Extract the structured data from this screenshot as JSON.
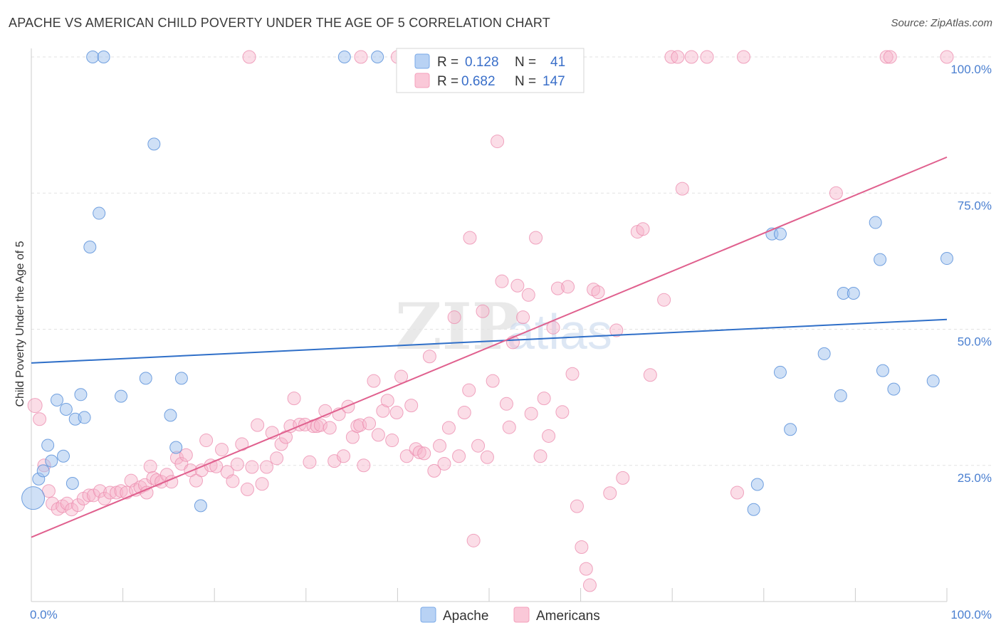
{
  "title": "APACHE VS AMERICAN CHILD POVERTY UNDER THE AGE OF 5 CORRELATION CHART",
  "source": "Source: ZipAtlas.com",
  "watermark": {
    "left": "ZIP",
    "right": "atlas"
  },
  "chart_data": {
    "type": "scatter",
    "title": "APACHE VS AMERICAN CHILD POVERTY UNDER THE AGE OF 5 CORRELATION CHART",
    "ylabel": "Child Poverty Under the Age of 5",
    "xlabel": "",
    "xlim": [
      0,
      100
    ],
    "ylim": [
      0,
      100
    ],
    "x_tick_labels": [
      "0.0%",
      "100.0%"
    ],
    "y_tick_labels": [
      "25.0%",
      "50.0%",
      "75.0%",
      "100.0%"
    ],
    "y_ticks": [
      25,
      50,
      75,
      100
    ],
    "grid": "horizontal dashed",
    "legend_position": "top-center",
    "colors": {
      "apache": "#7aaae8",
      "americans": "#f4a0bc",
      "apache_line": "#2f6fc8",
      "americans_line": "#e0608e"
    },
    "legend": [
      {
        "r_label": "R =",
        "r_value": "0.128",
        "n_label": "N =",
        "n_value": "41"
      },
      {
        "r_label": "R =",
        "r_value": "0.682",
        "n_label": "N =",
        "n_value": "147"
      }
    ],
    "series": [
      {
        "name": "Apache",
        "trend": {
          "x": [
            0,
            100
          ],
          "y": [
            43.8,
            51.8
          ]
        },
        "points": [
          [
            0.2,
            19
          ],
          [
            0.8,
            22.5
          ],
          [
            1.3,
            24
          ],
          [
            1.8,
            28.7
          ],
          [
            2.2,
            25.8
          ],
          [
            2.8,
            37
          ],
          [
            3.5,
            26.7
          ],
          [
            3.8,
            35.3
          ],
          [
            4.5,
            21.7
          ],
          [
            4.8,
            33.5
          ],
          [
            5.4,
            38
          ],
          [
            5.8,
            33.8
          ],
          [
            6.4,
            65.1
          ],
          [
            7.4,
            71.3
          ],
          [
            6.7,
            100
          ],
          [
            7.9,
            100
          ],
          [
            9.8,
            37.7
          ],
          [
            12.5,
            41
          ],
          [
            13.4,
            84
          ],
          [
            15.2,
            34.2
          ],
          [
            15.8,
            28.3
          ],
          [
            16.4,
            41
          ],
          [
            18.5,
            17.6
          ],
          [
            34.2,
            100
          ],
          [
            37.8,
            100
          ],
          [
            78.9,
            16.9
          ],
          [
            79.3,
            21.5
          ],
          [
            80.9,
            67.5
          ],
          [
            81.8,
            67.5
          ],
          [
            81.8,
            42.1
          ],
          [
            82.9,
            31.6
          ],
          [
            86.6,
            45.5
          ],
          [
            88.4,
            37.8
          ],
          [
            88.7,
            56.6
          ],
          [
            89.8,
            56.6
          ],
          [
            92.2,
            69.6
          ],
          [
            92.7,
            62.8
          ],
          [
            93.0,
            42.4
          ],
          [
            94.2,
            39
          ],
          [
            98.5,
            40.5
          ],
          [
            100,
            63
          ]
        ]
      },
      {
        "name": "Americans",
        "trend": {
          "x": [
            0,
            100
          ],
          "y": [
            11.8,
            81.6
          ]
        },
        "points": [
          [
            0.4,
            36
          ],
          [
            0.9,
            33.5
          ],
          [
            1.4,
            25
          ],
          [
            1.9,
            20.3
          ],
          [
            2.3,
            18
          ],
          [
            2.9,
            17
          ],
          [
            3.4,
            17.5
          ],
          [
            3.9,
            18
          ],
          [
            4.4,
            16.9
          ],
          [
            5.1,
            17.7
          ],
          [
            5.7,
            18.9
          ],
          [
            6.3,
            19.5
          ],
          [
            6.8,
            19.5
          ],
          [
            7.5,
            20.3
          ],
          [
            8,
            18.9
          ],
          [
            8.6,
            20
          ],
          [
            9.3,
            20
          ],
          [
            9.8,
            20.3
          ],
          [
            10.4,
            20
          ],
          [
            10.9,
            22.2
          ],
          [
            11.4,
            20.5
          ],
          [
            11.9,
            21
          ],
          [
            12.4,
            21.4
          ],
          [
            12.6,
            20
          ],
          [
            13,
            24.8
          ],
          [
            13.3,
            22.7
          ],
          [
            13.7,
            22.3
          ],
          [
            14.2,
            22
          ],
          [
            14.8,
            23.3
          ],
          [
            15.3,
            22
          ],
          [
            15.9,
            26.4
          ],
          [
            16.4,
            25.3
          ],
          [
            16.9,
            26.9
          ],
          [
            17.4,
            24.1
          ],
          [
            18,
            22.2
          ],
          [
            18.6,
            24.1
          ],
          [
            19.1,
            29.6
          ],
          [
            19.6,
            25
          ],
          [
            20.2,
            24.8
          ],
          [
            20.8,
            27.9
          ],
          [
            21.4,
            23.8
          ],
          [
            22.0,
            22.1
          ],
          [
            22.5,
            25.2
          ],
          [
            23,
            28.9
          ],
          [
            23.6,
            20.6
          ],
          [
            24.1,
            24.7
          ],
          [
            24.7,
            32.4
          ],
          [
            25.2,
            21.6
          ],
          [
            25.7,
            24.7
          ],
          [
            26.3,
            31
          ],
          [
            26.8,
            26.3
          ],
          [
            27.3,
            28.9
          ],
          [
            27.8,
            30.2
          ],
          [
            28.3,
            32.2
          ],
          [
            28.7,
            37.3
          ],
          [
            29.3,
            32.5
          ],
          [
            29.9,
            32.5
          ],
          [
            30.4,
            25.6
          ],
          [
            30.8,
            32.2
          ],
          [
            31.2,
            32.2
          ],
          [
            31.6,
            32.4
          ],
          [
            32.1,
            35
          ],
          [
            32.6,
            31.9
          ],
          [
            33.1,
            25.8
          ],
          [
            33.6,
            34.4
          ],
          [
            34.1,
            26.7
          ],
          [
            34.6,
            35.8
          ],
          [
            35.1,
            30.2
          ],
          [
            35.6,
            32.2
          ],
          [
            35.9,
            32.4
          ],
          [
            36.3,
            25
          ],
          [
            36.9,
            32.7
          ],
          [
            37.4,
            40.5
          ],
          [
            37.9,
            30.6
          ],
          [
            38.4,
            35
          ],
          [
            38.9,
            36.9
          ],
          [
            39.4,
            29.6
          ],
          [
            39.9,
            34.7
          ],
          [
            40.4,
            41.3
          ],
          [
            41,
            26.7
          ],
          [
            41.5,
            36
          ],
          [
            42,
            28
          ],
          [
            42.4,
            27.4
          ],
          [
            42.9,
            27.2
          ],
          [
            43.5,
            45
          ],
          [
            44,
            24
          ],
          [
            44.6,
            28.6
          ],
          [
            45.1,
            25.3
          ],
          [
            45.6,
            31.9
          ],
          [
            46.2,
            52.2
          ],
          [
            46.7,
            26.7
          ],
          [
            47.3,
            34.7
          ],
          [
            47.8,
            38.8
          ],
          [
            48.3,
            11.2
          ],
          [
            48.8,
            28.6
          ],
          [
            49.3,
            53.3
          ],
          [
            49.8,
            26.5
          ],
          [
            50.4,
            40.5
          ],
          [
            50.9,
            84.5
          ],
          [
            51.4,
            58.8
          ],
          [
            51.9,
            36.3
          ],
          [
            52.2,
            32
          ],
          [
            52.6,
            47.6
          ],
          [
            53.1,
            58
          ],
          [
            53.7,
            52.2
          ],
          [
            54.3,
            56.3
          ],
          [
            54.6,
            34.5
          ],
          [
            55.1,
            66.8
          ],
          [
            55.6,
            26.7
          ],
          [
            56,
            37.3
          ],
          [
            56.5,
            30.4
          ],
          [
            57,
            50.3
          ],
          [
            57.5,
            57.5
          ],
          [
            58,
            34.8
          ],
          [
            58.6,
            57.8
          ],
          [
            59.1,
            41.8
          ],
          [
            59.6,
            17.5
          ],
          [
            60.1,
            10
          ],
          [
            60.6,
            6
          ],
          [
            61,
            3
          ],
          [
            61.4,
            57.3
          ],
          [
            61.9,
            56.8
          ],
          [
            63.2,
            19.9
          ],
          [
            63.9,
            49.8
          ],
          [
            64.6,
            22.7
          ],
          [
            66.2,
            67.9
          ],
          [
            66.8,
            68.4
          ],
          [
            67.6,
            41.6
          ],
          [
            69.1,
            55.4
          ],
          [
            69.9,
            100
          ],
          [
            71.1,
            75.8
          ],
          [
            70.6,
            100
          ],
          [
            72.1,
            100
          ],
          [
            73.8,
            100
          ],
          [
            77.1,
            20
          ],
          [
            77.8,
            100
          ],
          [
            87.9,
            75
          ],
          [
            93.4,
            100
          ],
          [
            93.8,
            100
          ],
          [
            100,
            100
          ],
          [
            23.8,
            100
          ],
          [
            47.6,
            100
          ],
          [
            47.9,
            66.8
          ],
          [
            36,
            100
          ],
          [
            40,
            100
          ],
          [
            49,
            100
          ],
          [
            50,
            100
          ]
        ]
      }
    ]
  },
  "bottom_legend": [
    {
      "label": "Apache"
    },
    {
      "label": "Americans"
    }
  ]
}
